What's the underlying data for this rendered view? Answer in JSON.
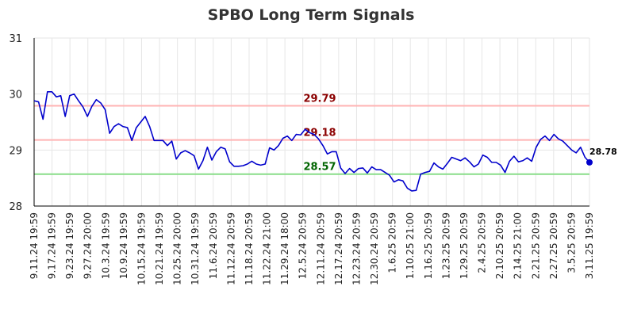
{
  "chart_data": {
    "type": "line",
    "title": "SPBO Long Term Signals",
    "xlabel": "",
    "ylabel": "",
    "ylim": [
      28,
      31
    ],
    "yticks": [
      28,
      29,
      30,
      31
    ],
    "grid": true,
    "xtick_labels": [
      "9.11.24 19:59",
      "9.17.24 19:59",
      "9.23.24 19:59",
      "9.27.24 20:00",
      "10.3.24 19:59",
      "10.9.24 19:59",
      "10.15.24 19:59",
      "10.21.24 19:59",
      "10.25.24 20:00",
      "10.31.24 19:59",
      "11.6.24 20:59",
      "11.12.24 20:59",
      "11.18.24 20:59",
      "11.22.24 21:00",
      "11.29.24 18:00",
      "12.5.24 20:59",
      "12.11.24 20:59",
      "12.17.24 20:59",
      "12.23.24 20:59",
      "12.30.24 20:59",
      "1.6.25 20:59",
      "1.10.25 21:00",
      "1.16.25 20:59",
      "1.23.25 20:59",
      "1.29.25 20:59",
      "2.4.25 20:59",
      "2.10.25 20:59",
      "2.14.25 21:00",
      "2.21.25 20:59",
      "2.27.25 20:59",
      "3.5.25 20:59",
      "3.11.25 19:59"
    ],
    "series": [
      {
        "values": [
          29.88,
          29.86,
          29.55,
          30.04,
          30.04,
          29.95,
          29.97,
          29.6,
          29.97,
          30.0,
          29.88,
          29.77,
          29.6,
          29.78,
          29.9,
          29.84,
          29.72,
          29.3,
          29.42,
          29.47,
          29.42,
          29.4,
          29.17,
          29.4,
          29.5,
          29.6,
          29.42,
          29.17,
          29.17,
          29.17,
          29.08,
          29.16,
          28.84,
          28.95,
          28.99,
          28.95,
          28.9,
          28.66,
          28.81,
          29.05,
          28.82,
          28.97,
          29.05,
          29.02,
          28.79,
          28.71,
          28.71,
          28.72,
          28.75,
          28.8,
          28.75,
          28.73,
          28.75,
          29.04,
          29.0,
          29.08,
          29.21,
          29.25,
          29.17,
          29.28,
          29.27,
          29.37,
          29.31,
          29.28,
          29.2,
          29.08,
          28.93,
          28.97,
          28.97,
          28.68,
          28.58,
          28.67,
          28.6,
          28.67,
          28.68,
          28.59,
          28.7,
          28.65,
          28.65,
          28.6,
          28.55,
          28.43,
          28.47,
          28.45,
          28.32,
          28.27,
          28.28,
          28.57,
          28.6,
          28.62,
          28.77,
          28.7,
          28.66,
          28.76,
          28.87,
          28.84,
          28.81,
          28.86,
          28.79,
          28.7,
          28.75,
          28.91,
          28.87,
          28.78,
          28.78,
          28.73,
          28.6,
          28.8,
          28.89,
          28.79,
          28.81,
          28.86,
          28.8,
          29.05,
          29.19,
          29.25,
          29.17,
          29.28,
          29.2,
          29.16,
          29.08,
          29.0,
          28.95,
          29.05,
          28.87,
          28.78
        ]
      }
    ],
    "hlines": [
      {
        "value": 29.79,
        "label": "29.79",
        "line_color": "#ffb3b3",
        "text_color": "#8b0000"
      },
      {
        "value": 29.18,
        "label": "29.18",
        "line_color": "#ffb3b3",
        "text_color": "#8b0000"
      },
      {
        "value": 28.57,
        "label": "28.57",
        "line_color": "#88dd88",
        "text_color": "#006400"
      }
    ],
    "last_value_label": "28.78",
    "colors": {
      "line": "#0000cc",
      "grid": "#e6e6e6",
      "axis": "#000000"
    }
  }
}
